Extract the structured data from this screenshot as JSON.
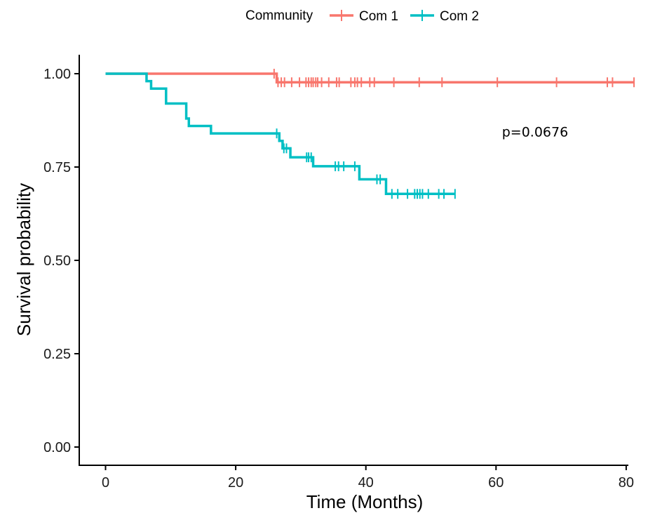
{
  "chart_data": {
    "type": "line",
    "title": "",
    "xlabel": "Time (Months)",
    "ylabel": "Survival probability",
    "xlim": [
      -2,
      82
    ],
    "ylim": [
      -0.05,
      1.05
    ],
    "x_ticks": [
      0,
      20,
      40,
      60,
      80
    ],
    "y_ticks": [
      0.0,
      0.25,
      0.5,
      0.75,
      1.0
    ],
    "y_tick_labels": [
      "0.00",
      "0.25",
      "0.50",
      "0.75",
      "1.00"
    ],
    "grid": false,
    "legend": {
      "title": "Community",
      "position": "top"
    },
    "annotation": "p=0.0676",
    "annotation_position": {
      "x": 66,
      "y": 0.845
    },
    "series": [
      {
        "name": "Com 1",
        "color": "#F8766D",
        "steps": [
          [
            0,
            1.0
          ],
          [
            26.3,
            0.977
          ],
          [
            81.2,
            0.977
          ]
        ],
        "censor_times": [
          25.9,
          26.5,
          27.0,
          27.5,
          28.6,
          29.8,
          30.8,
          31.2,
          31.6,
          31.9,
          32.3,
          32.6,
          33.2,
          34.3,
          35.5,
          35.9,
          37.7,
          38.3,
          38.7,
          39.3,
          40.6,
          41.3,
          44.3,
          48.2,
          51.7,
          60.2,
          69.3,
          77.1,
          77.9,
          81.2
        ]
      },
      {
        "name": "Com 2",
        "color": "#00BFC4",
        "steps": [
          [
            0,
            1.0
          ],
          [
            6.3,
            0.98
          ],
          [
            7.0,
            0.96
          ],
          [
            9.3,
            0.92
          ],
          [
            12.4,
            0.88
          ],
          [
            12.8,
            0.86
          ],
          [
            16.2,
            0.84
          ],
          [
            26.7,
            0.82
          ],
          [
            27.2,
            0.8
          ],
          [
            28.4,
            0.776
          ],
          [
            31.9,
            0.752
          ],
          [
            39.0,
            0.717
          ],
          [
            43.1,
            0.678
          ],
          [
            53.7,
            0.678
          ]
        ],
        "censor_times": [
          26.3,
          27.4,
          27.8,
          30.9,
          31.2,
          31.6,
          35.3,
          35.8,
          36.6,
          38.3,
          41.7,
          42.2,
          44.0,
          44.9,
          46.4,
          47.5,
          47.9,
          48.3,
          48.7,
          49.6,
          51.2,
          52.0,
          53.7
        ]
      }
    ]
  }
}
